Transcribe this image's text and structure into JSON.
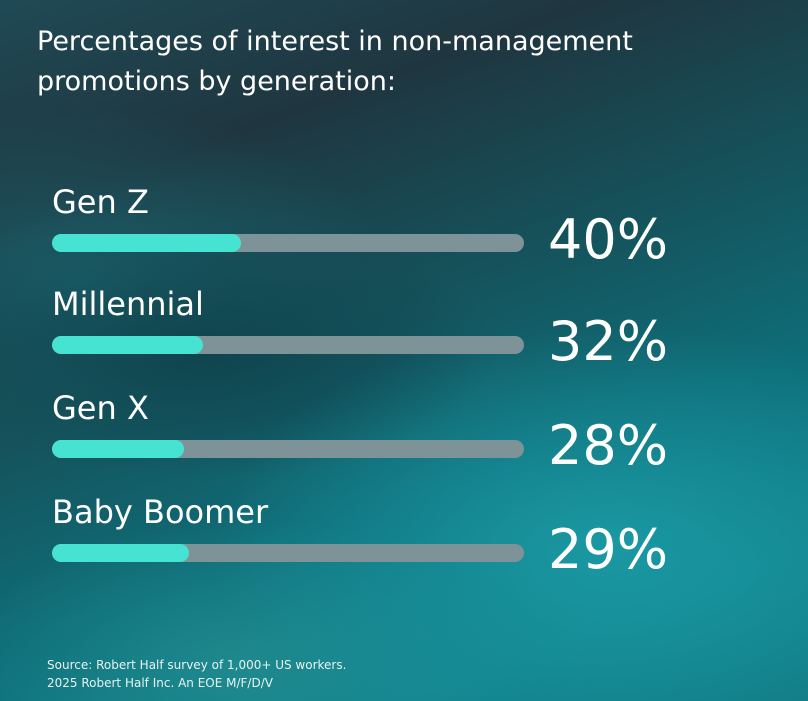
{
  "chart_data": {
    "type": "bar",
    "title": "Percentages of interest in non-management promotions by generation:",
    "categories": [
      "Gen Z",
      "Millennial",
      "Gen X",
      "Baby Boomer"
    ],
    "values": [
      40,
      32,
      28,
      29
    ],
    "value_labels": [
      "40%",
      "32%",
      "28%",
      "29%"
    ],
    "unit": "%",
    "ylim": [
      0,
      100
    ],
    "orientation": "horizontal",
    "grid": false,
    "colors": {
      "fill": "#46e3d3",
      "track": "#7d9398"
    }
  },
  "footnote": {
    "line1": "Source: Robert Half survey of 1,000+ US workers.",
    "line2": "2025 Robert Half Inc. An EOE M/F/D/V"
  }
}
